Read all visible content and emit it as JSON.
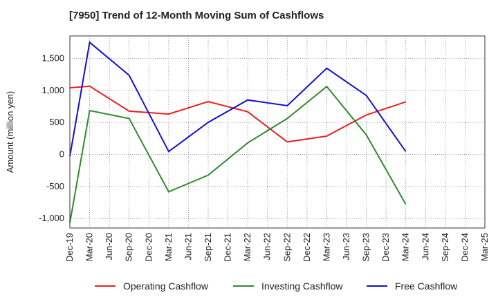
{
  "chart_data": {
    "type": "line",
    "title": "[7950]  Trend of 12-Month Moving Sum of Cashflows",
    "xlabel": "",
    "ylabel": "Amount (million yen)",
    "categories": [
      "Dec-19",
      "Mar-20",
      "Jun-20",
      "Sep-20",
      "Dec-20",
      "Mar-21",
      "Jun-21",
      "Sep-21",
      "Dec-21",
      "Mar-22",
      "Jun-22",
      "Sep-22",
      "Dec-22",
      "Mar-23",
      "Jun-23",
      "Sep-23",
      "Dec-23",
      "Mar-24",
      "Jun-24",
      "Sep-24",
      "Dec-24",
      "Mar-25"
    ],
    "ylim": [
      -1150,
      1850
    ],
    "yticks": [
      -1000,
      -500,
      0,
      500,
      1000,
      1500
    ],
    "ytick_labels": [
      "-1,000",
      "-500",
      "0",
      "500",
      "1,000",
      "1,500"
    ],
    "grid": true,
    "legend_position": "bottom",
    "series": [
      {
        "name": "Operating Cashflow",
        "color": "#e8201f",
        "x": [
          "Dec-19",
          "Mar-20",
          "Sep-20",
          "Mar-21",
          "Sep-21",
          "Mar-22",
          "Sep-22",
          "Mar-23",
          "Sep-23",
          "Mar-24"
        ],
        "values": [
          1040,
          1065,
          675,
          630,
          825,
          665,
          195,
          285,
          615,
          820
        ]
      },
      {
        "name": "Investing Cashflow",
        "color": "#2e8b2e",
        "x": [
          "Dec-19",
          "Mar-20",
          "Sep-20",
          "Mar-21",
          "Sep-21",
          "Mar-22",
          "Sep-22",
          "Mar-23",
          "Sep-23",
          "Mar-24"
        ],
        "values": [
          -1070,
          685,
          560,
          -585,
          -325,
          180,
          560,
          1060,
          305,
          -780
        ]
      },
      {
        "name": "Free Cashflow",
        "color": "#1010d0",
        "x": [
          "Dec-19",
          "Mar-20",
          "Sep-20",
          "Mar-21",
          "Sep-21",
          "Mar-22",
          "Sep-22",
          "Mar-23",
          "Sep-23",
          "Mar-24"
        ],
        "values": [
          -30,
          1750,
          1235,
          45,
          500,
          850,
          760,
          1345,
          920,
          45
        ]
      }
    ]
  }
}
